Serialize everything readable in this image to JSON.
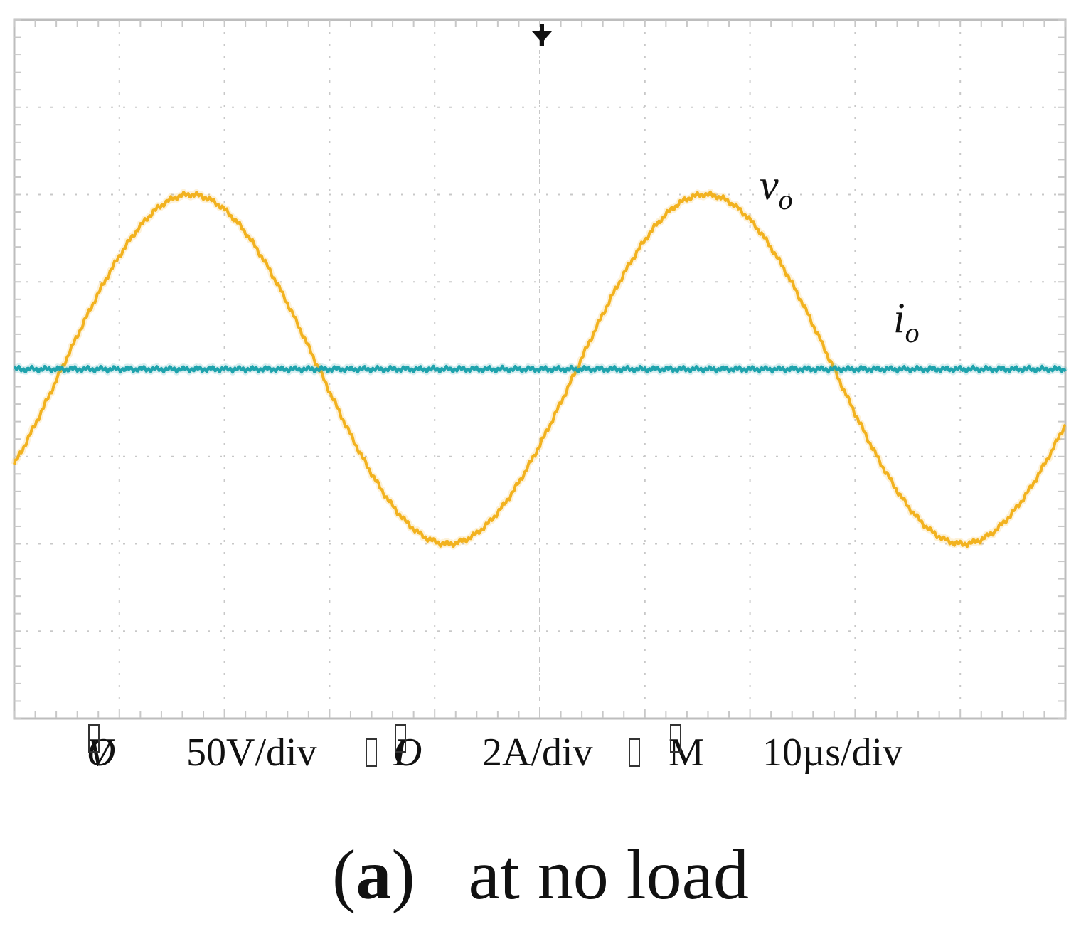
{
  "chart_data": {
    "type": "line",
    "grid": true,
    "x_divisions": 10,
    "y_divisions": 8,
    "x_unit": "µs",
    "time_per_div": 10,
    "series": [
      {
        "name": "v_o",
        "label_main": "v",
        "label_sub": "o",
        "color": "#f2b21f",
        "scale": "50V/div",
        "description_shape": "sinusoid",
        "amplitude_div": 2.0,
        "period_div": 4.9,
        "zero_cross_div": 0.45,
        "offset_div": 0
      },
      {
        "name": "i_o",
        "label_main": "i",
        "label_sub": "o",
        "color": "#1fa3ad",
        "scale": "2A/div",
        "description_shape": "flat",
        "amplitude_div": 0,
        "offset_div": 0
      }
    ]
  },
  "scale_labels": {
    "vo_symbol": "V",
    "vo_sub": "O",
    "vo_scale": "50V/div",
    "io_symbol": "I",
    "io_sub": "O",
    "io_scale": "2A/div",
    "m_symbol": "M",
    "m_scale": "10µs/div"
  },
  "caption": {
    "label": "a",
    "open_paren": "(",
    "close_paren": ")",
    "text": "at no load"
  },
  "colors": {
    "grid": "#c8c8c8",
    "frame": "#bdbdbd",
    "voltage": "#f2b21f",
    "current": "#1fa3ad",
    "trigger": "#111111"
  }
}
